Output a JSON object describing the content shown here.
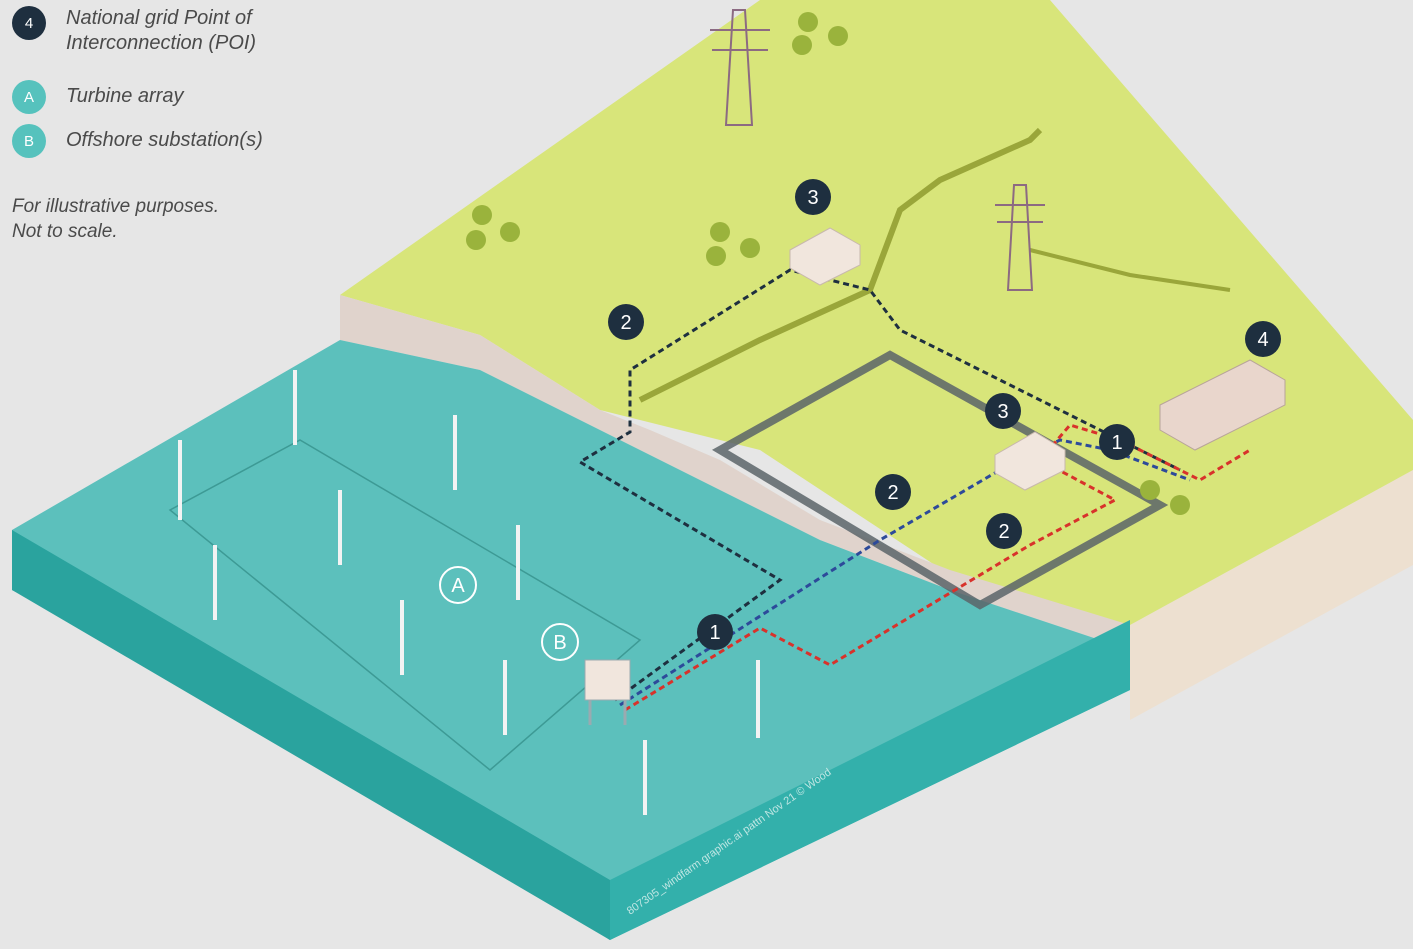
{
  "legend": [
    {
      "badge": "4",
      "text_line1": "National grid Point of",
      "text_line2": "Interconnection (POI)"
    },
    {
      "badge": "A",
      "text_line1": "Turbine array",
      "text_line2": ""
    },
    {
      "badge": "B",
      "text_line1": "Offshore substation(s)",
      "text_line2": ""
    }
  ],
  "note": {
    "line1": "For illustrative purposes.",
    "line2": "Not to scale."
  },
  "markers": {
    "landfall": "2",
    "onshore_substation": "3",
    "poi": "4",
    "export_cable": "1",
    "turbine_array": "A",
    "offshore_substation": "B"
  },
  "credit": "807305_windfarm graphic.ai pattn Nov 21 © Wood",
  "colors": {
    "sea": "#5cc0bc",
    "sea_side": "#2aa39e",
    "land": "#d8e57a",
    "land_edge": "#c9d66a",
    "cliff": "#e0d3cc",
    "cable_dark": "#1e2f3f",
    "cable_blue": "#2d4a9a",
    "cable_red": "#d8322b",
    "badge_dark": "#1e2f3f",
    "badge_teal": "#56c2bd"
  }
}
